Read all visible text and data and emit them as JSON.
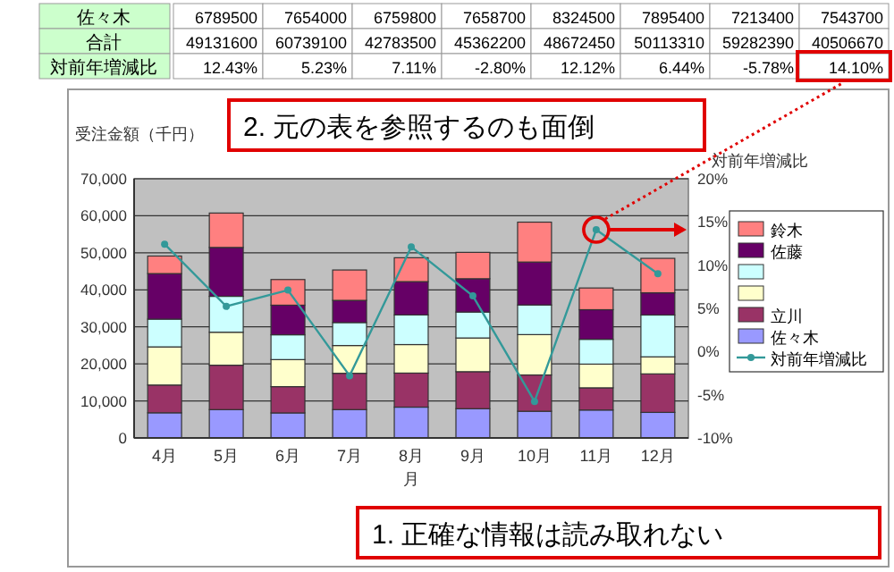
{
  "chart_data": {
    "type": "bar",
    "stacked": true,
    "ylabel": "受注金額（千円）",
    "y2label": "対前年増減比",
    "xlabel": "月",
    "categories": [
      "4月",
      "5月",
      "6月",
      "7月",
      "8月",
      "9月",
      "10月",
      "11月",
      "12月"
    ],
    "ylim": [
      0,
      70000
    ],
    "yticks": [
      0,
      {
        "value": 10000,
        "label": "10,000"
      },
      {
        "value": 20000,
        "label": "20,000"
      },
      {
        "value": 30000,
        "label": "30,000"
      },
      {
        "value": 40000,
        "label": "40,000"
      },
      {
        "value": 50000,
        "label": "50,000"
      },
      {
        "value": 60000,
        "label": "60,000"
      },
      {
        "value": 70000,
        "label": "70,000"
      }
    ],
    "y2lim": [
      -10,
      20
    ],
    "y2ticks": [
      {
        "value": -10,
        "label": "-10%"
      },
      {
        "value": -5,
        "label": "-5%"
      },
      {
        "value": 0,
        "label": "0%"
      },
      {
        "value": 5,
        "label": "5%"
      },
      {
        "value": 10,
        "label": "10%"
      },
      {
        "value": 15,
        "label": "15%"
      },
      {
        "value": 20,
        "label": "20%"
      }
    ],
    "grid": "y",
    "legend": "right",
    "marker": "circle",
    "annotations": [
      "2. 元の表を参照するのも面倒",
      "1. 正確な情報は読み取れない",
      "佐々木",
      "6789500",
      "7654000",
      "6759800",
      "7658700",
      "8324500",
      "7895400",
      "7213400",
      "7543700",
      "合計",
      "49131600",
      "60739100",
      "42783500",
      "45362200",
      "48672450",
      "50113310",
      "59282390",
      "40506670",
      "対前年増減比",
      "12.43%",
      "5.23%",
      "7.11%",
      "-2.80%",
      "12.12%",
      "6.44%",
      "-5.78%",
      "14.10%"
    ],
    "series": [
      {
        "name": "佐々木",
        "color": "#9999ff",
        "values": [
          6790,
          7650,
          6760,
          7660,
          8320,
          7900,
          7210,
          7540,
          6900
        ]
      },
      {
        "name": "立川",
        "color": "#993366",
        "values": [
          7500,
          12000,
          7100,
          9800,
          9200,
          10000,
          9800,
          6000,
          10400
        ]
      },
      {
        "color": "#ffffcc",
        "values": [
          10300,
          8900,
          7300,
          7500,
          7700,
          9100,
          10900,
          6400,
          4600
        ]
      },
      {
        "color": "#ccffff",
        "values": [
          7500,
          9700,
          6700,
          6200,
          8000,
          7000,
          8000,
          6700,
          11300
        ]
      },
      {
        "name": "佐藤",
        "color": "#660066",
        "values": [
          12300,
          13200,
          8000,
          6000,
          9000,
          9000,
          11600,
          8000,
          6000
        ]
      },
      {
        "name": "鈴木",
        "color": "#ff8080",
        "values": [
          4740,
          9290,
          6920,
          8200,
          6450,
          7120,
          10770,
          5860,
          9300
        ]
      },
      {
        "name": "対前年増減比",
        "type": "line",
        "axis": "y2",
        "color": "#339999",
        "values": [
          12.43,
          5.23,
          7.11,
          -2.8,
          12.12,
          6.44,
          -5.78,
          14.1,
          9
        ]
      }
    ]
  }
}
